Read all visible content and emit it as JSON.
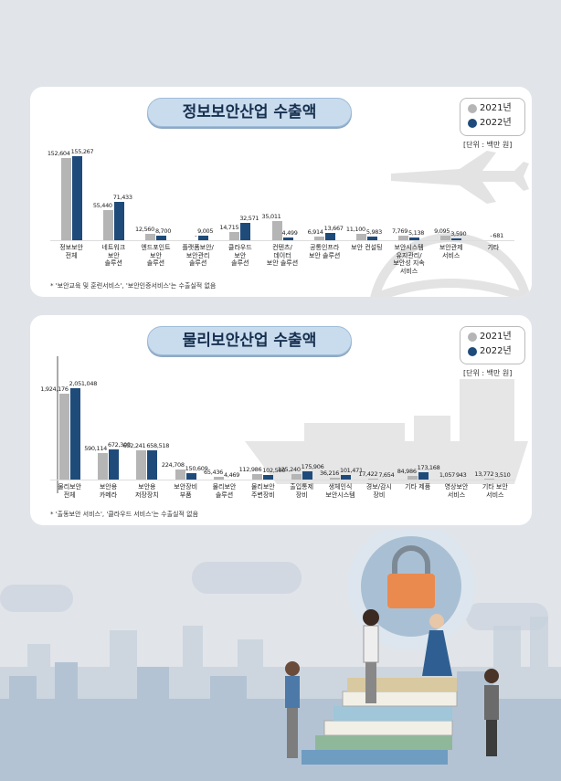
{
  "chart_data": [
    {
      "type": "bar",
      "title": "정보보안산업 수출액",
      "unit": "[단위 : 백만 원]",
      "categories": [
        "정보보안\n전체",
        "네트워크\n보안\n솔루션",
        "엔드포인트\n보안\n솔루션",
        "플랫폼보안/\n보안관리\n솔루션",
        "클라우드\n보안\n솔루션",
        "컨텐츠/\n데이터\n보안 솔루션",
        "공통인프라\n보안 솔루션",
        "보안 컨설팅",
        "보안시스템\n유지관리/\n보안성 지속\n서비스",
        "보안관제\n서비스",
        "기타"
      ],
      "series": [
        {
          "name": "2021년",
          "color": "#b5b5b5",
          "values": [
            152604,
            55440,
            12560,
            null,
            14715,
            35011,
            6914,
            11100,
            7769,
            9095,
            null
          ],
          "value_labels": [
            "152,604",
            "55,440",
            "12,560",
            "-",
            "14,715",
            "35,011",
            "6,914",
            "11,100",
            "7,769",
            "9,095",
            "-"
          ]
        },
        {
          "name": "2022년",
          "color": "#1f4b7a",
          "values": [
            155267,
            71433,
            8700,
            9005,
            32571,
            4499,
            13667,
            5983,
            5138,
            3590,
            681
          ],
          "value_labels": [
            "155,267",
            "71,433",
            "8,700",
            "9,005",
            "32,571",
            "4,499",
            "13,667",
            "5,983",
            "5,138",
            "3,590",
            "681"
          ]
        }
      ],
      "note": "* '보안교육 및 훈련서비스', '보안인증서비스'는 수출실적 없음"
    },
    {
      "type": "bar",
      "title": "물리보안산업 수출액",
      "unit": "[단위 : 백만 원]",
      "categories": [
        "물리보안\n전체",
        "보안용\n카메라",
        "보안용\n저장장치",
        "보안장비\n부품",
        "물리보안\n솔루션",
        "물리보안\n주변장비",
        "출입통제\n장비",
        "생체인식\n보안시스템",
        "경보/감시\n장비",
        "기타 제품",
        "영상보안\n서비스",
        "기타 보안\n서비스"
      ],
      "series": [
        {
          "name": "2021년",
          "color": "#b5b5b5",
          "values": [
            1924176,
            590114,
            652241,
            224708,
            65436,
            112986,
            125240,
            36216,
            17422,
            84986,
            1057,
            13772
          ],
          "value_labels": [
            "1,924,176",
            "590,114",
            "652,241",
            "224,708",
            "65,436",
            "112,986",
            "125,240",
            "36,216",
            "17,422",
            "84,986",
            "1,057",
            "13,772"
          ]
        },
        {
          "name": "2022년",
          "color": "#1f4b7a",
          "values": [
            2051048,
            672303,
            658518,
            150609,
            4469,
            102500,
            175906,
            101471,
            7654,
            173168,
            943,
            3510
          ],
          "value_labels": [
            "2,051,048",
            "672,303",
            "658,518",
            "150,609",
            "4,469",
            "102,500",
            "175,906",
            "101,471",
            "7,654",
            "173,168",
            "943",
            "3,510"
          ]
        }
      ],
      "note": "* '출동보안 서비스', '클라우드 서비스'는 수출실적 없음"
    }
  ]
}
